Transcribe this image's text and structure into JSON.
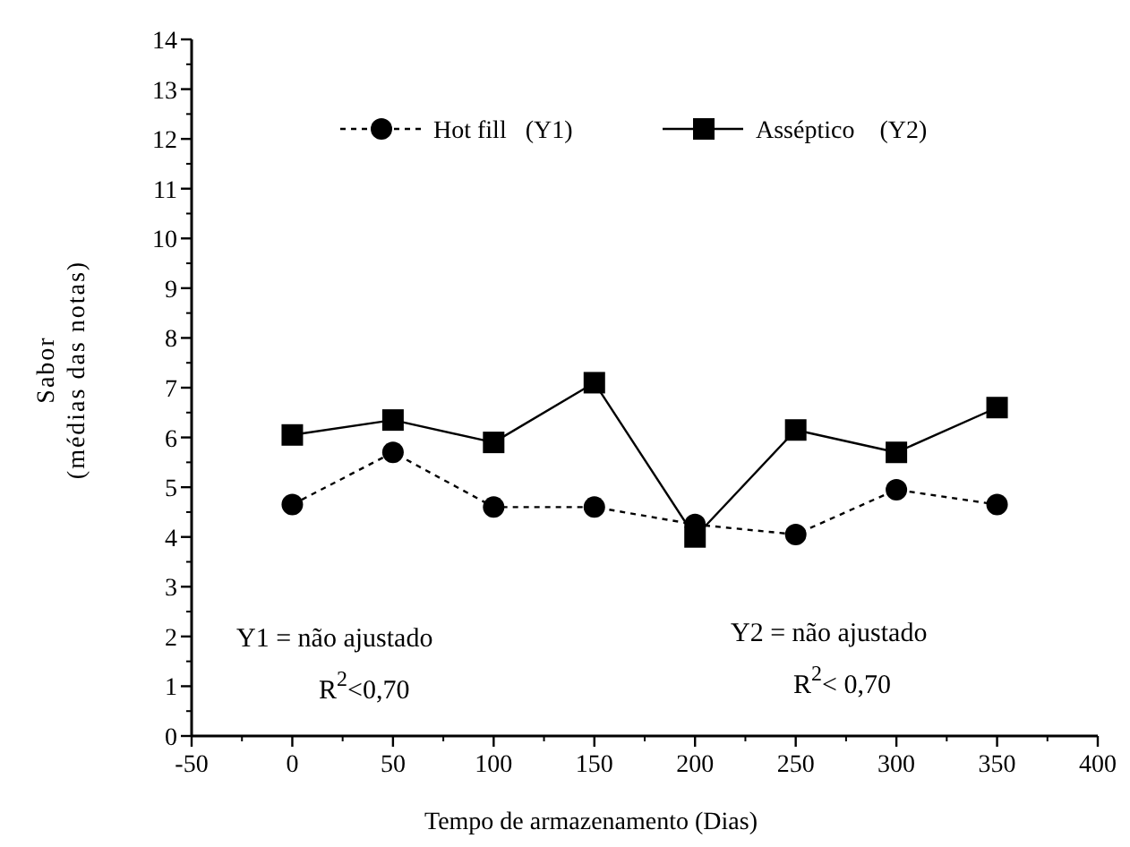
{
  "chart_data": {
    "type": "line",
    "xlabel": "Tempo de armazenamento (Dias)",
    "ylabel": "Sabor\n(médias das notas)",
    "x": [
      0,
      50,
      100,
      150,
      200,
      250,
      300,
      350
    ],
    "series": [
      {
        "name": "Hot fill   (Y1)",
        "color": "#000000",
        "marker": "circle",
        "line_style": "dotted",
        "values": [
          4.65,
          5.7,
          4.6,
          4.6,
          4.25,
          4.05,
          4.95,
          4.65
        ]
      },
      {
        "name": "Asséptico    (Y2)",
        "color": "#000000",
        "marker": "square",
        "line_style": "solid",
        "values": [
          6.05,
          6.35,
          5.9,
          7.1,
          4.0,
          6.15,
          5.7,
          6.6
        ]
      }
    ],
    "xlim": [
      -50,
      400
    ],
    "xticks": [
      -50,
      0,
      50,
      100,
      150,
      200,
      250,
      300,
      350,
      400
    ],
    "ylim": [
      0,
      14
    ],
    "yticks": [
      0,
      1,
      2,
      3,
      4,
      5,
      6,
      7,
      8,
      9,
      10,
      11,
      12,
      13,
      14
    ],
    "legend": "top",
    "grid": false,
    "annotations": [
      "Y1 = não ajustado",
      "R$^{2}$<0,70",
      "Y2 = não ajustado",
      "R$^{2}$< 0,70"
    ]
  }
}
